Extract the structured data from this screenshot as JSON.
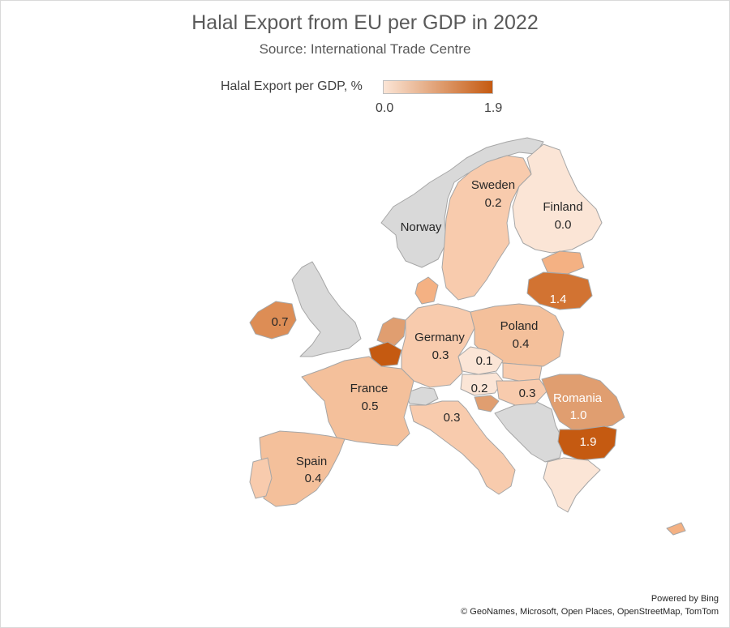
{
  "title": "Halal Export from EU per GDP in 2022",
  "subtitle": "Source: International Trade Centre",
  "legend": {
    "title": "Halal Export per GDP, %",
    "min": "0.0",
    "max": "1.9",
    "min_color": "#fbe5d6",
    "max_color": "#c55a11"
  },
  "colors": {
    "no_data": "#d9d9d9",
    "border": "#a6a6a6"
  },
  "countries": [
    {
      "name": "Sweden",
      "value": "0.2"
    },
    {
      "name": "Finland",
      "value": "0.0"
    },
    {
      "name": "Norway"
    },
    {
      "name": "Ireland",
      "value": "0.7"
    },
    {
      "name": "Germany",
      "value": "0.3"
    },
    {
      "name": "Poland",
      "value": "0.4"
    },
    {
      "name": "France",
      "value": "0.5"
    },
    {
      "name": "Spain",
      "value": "0.4"
    },
    {
      "name": "Romania",
      "value": "1.0"
    },
    {
      "name": "Bulgaria",
      "value": "1.9"
    },
    {
      "name": "Lithuania",
      "value": "1.4"
    },
    {
      "name": "Czechia",
      "value": "0.1"
    },
    {
      "name": "Austria",
      "value": "0.2"
    },
    {
      "name": "Hungary",
      "value": "0.3"
    },
    {
      "name": "Italy",
      "value": "0.3"
    }
  ],
  "attribution": {
    "line1": "Powered by Bing",
    "line2": "© GeoNames, Microsoft, Open Places, OpenStreetMap, TomTom"
  }
}
